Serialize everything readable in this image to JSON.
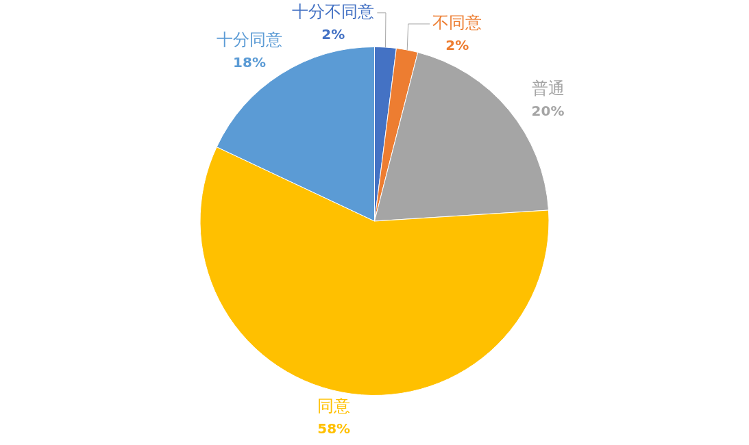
{
  "chart_data": {
    "type": "pie",
    "categories": [
      "十分不同意",
      "不同意",
      "普通",
      "同意",
      "十分同意"
    ],
    "values": [
      2,
      2,
      20,
      58,
      18
    ],
    "value_labels": [
      "2%",
      "2%",
      "20%",
      "58%",
      "18%"
    ],
    "colors": [
      "#4472c4",
      "#ed7d31",
      "#a5a5a5",
      "#ffc000",
      "#5b9bd5"
    ],
    "legend": false
  }
}
